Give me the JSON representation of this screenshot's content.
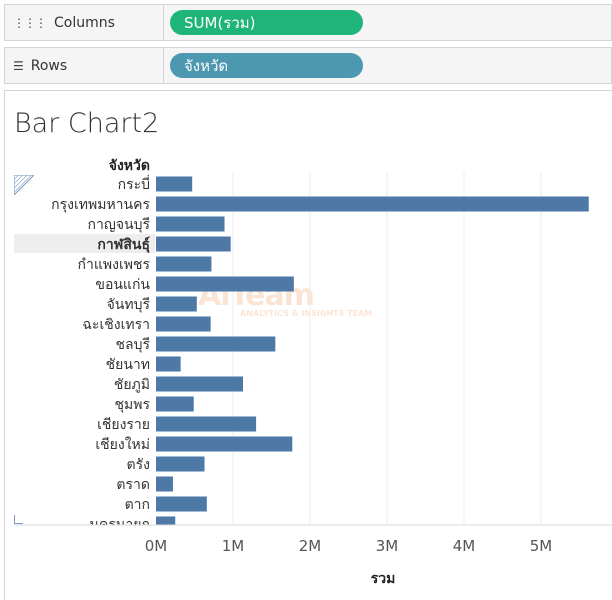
{
  "shelves": {
    "columns": {
      "label": "Columns",
      "icon": "columns-icon",
      "pill": "SUM(รวม)"
    },
    "rows": {
      "label": "Rows",
      "icon": "rows-icon",
      "pill": "จังหวัด"
    }
  },
  "colors": {
    "bar": "#4e79a7",
    "pill_green": "#1fb57a",
    "pill_blue": "#4b98b0"
  },
  "watermark": {
    "main": "AiTeam",
    "sub": "ANALYTICS & INSIGHTS TEAM"
  },
  "chart_data": {
    "type": "bar",
    "orientation": "horizontal",
    "title": "Bar Chart2",
    "row_header": "จังหวัด",
    "xlabel": "รวม",
    "ylabel": "จังหวัด",
    "xlim": [
      0,
      6000000
    ],
    "x_ticks": [
      0,
      1000000,
      2000000,
      3000000,
      4000000,
      5000000
    ],
    "x_tick_labels": [
      "0M",
      "1M",
      "2M",
      "3M",
      "4M",
      "5M"
    ],
    "grid": true,
    "highlighted": "กาฬสินธุ์",
    "categories": [
      "กระบี่",
      "กรุงเทพมหานคร",
      "กาญจนบุรี",
      "กาฬสินธุ์",
      "กำแพงเพชร",
      "ขอนแก่น",
      "จันทบุรี",
      "ฉะเชิงเทรา",
      "ชลบุรี",
      "ชัยนาท",
      "ชัยภูมิ",
      "ชุมพร",
      "เชียงราย",
      "เชียงใหม่",
      "ตรัง",
      "ตราด",
      "ตาก",
      "นครนายก"
    ],
    "values": [
      470000,
      5620000,
      890000,
      970000,
      720000,
      1790000,
      530000,
      710000,
      1550000,
      320000,
      1130000,
      490000,
      1300000,
      1770000,
      630000,
      220000,
      660000,
      250000
    ]
  }
}
